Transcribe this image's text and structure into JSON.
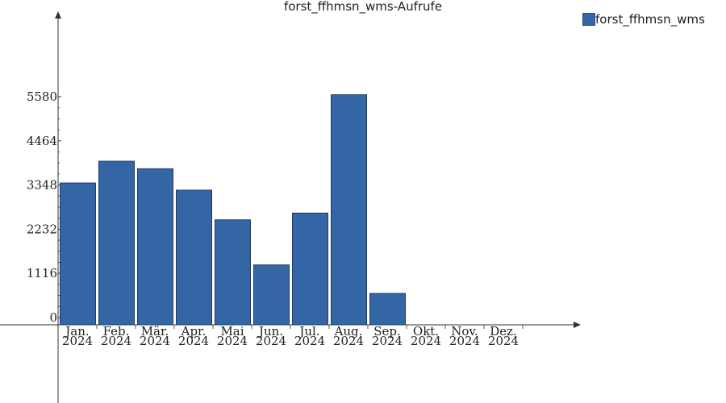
{
  "chart_data": {
    "type": "bar",
    "title": "forst_ffhmsn_wms-Aufrufe",
    "xlabel": "",
    "ylabel": "",
    "categories": [
      [
        "Jan.",
        "2024"
      ],
      [
        "Feb.",
        "2024"
      ],
      [
        "Mär.",
        "2024"
      ],
      [
        "Apr.",
        "2024"
      ],
      [
        "Mai",
        "2024"
      ],
      [
        "Jun.",
        "2024"
      ],
      [
        "Jul.",
        "2024"
      ],
      [
        "Aug.",
        "2024"
      ],
      [
        "Sep.",
        "2024"
      ],
      [
        "Okt.",
        "2024"
      ],
      [
        "Nov.",
        "2024"
      ],
      [
        "Dez.",
        "2024"
      ]
    ],
    "series": [
      {
        "name": "forst_ffhmsn_wms",
        "color": "#3465a4",
        "values": [
          3400,
          3950,
          3760,
          3220,
          2470,
          1330,
          2640,
          5630,
          610,
          null,
          null,
          null
        ]
      }
    ],
    "y_ticks": [
      0,
      1116,
      2232,
      3348,
      4464,
      5580
    ],
    "ylim": [
      -170,
      7300
    ],
    "legend": {
      "position": "top-right"
    },
    "grid": false
  }
}
